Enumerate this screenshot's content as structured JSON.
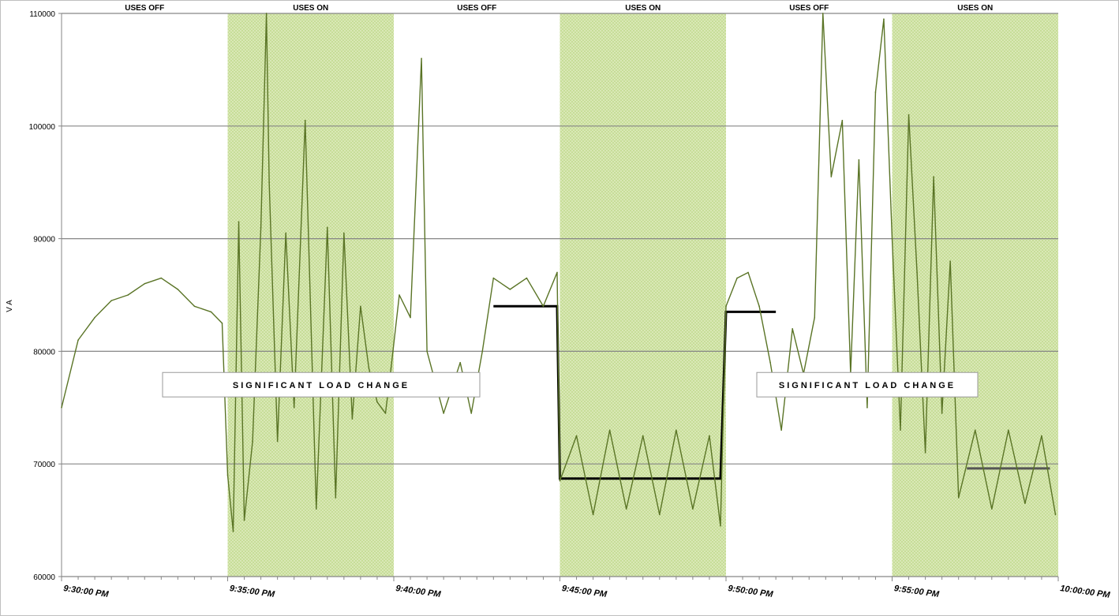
{
  "chart_data": {
    "type": "line",
    "ylabel": "V A",
    "xlabel": "",
    "ylim": [
      60000,
      110000
    ],
    "yticks": [
      60000,
      70000,
      80000,
      90000,
      100000,
      110000
    ],
    "ytick_labels": [
      "60000",
      "70000",
      "80000",
      "90000",
      "100000",
      "110000"
    ],
    "xlim_minutes": [
      0,
      30
    ],
    "xticks": [
      0,
      5,
      10,
      15,
      20,
      25,
      30
    ],
    "xtick_labels": [
      "9:30:00 PM",
      "9:35:00 PM",
      "9:40:00 PM",
      "9:45:00 PM",
      "9:50:00 PM",
      "9:55:00 PM",
      "10:00:00 PM"
    ],
    "grid": "horizontal",
    "bands": [
      {
        "label": "USES OFF",
        "start": "9:30:00 PM",
        "end": "9:35:00 PM",
        "shaded": false
      },
      {
        "label": "USES ON",
        "start": "9:35:00 PM",
        "end": "9:40:00 PM",
        "shaded": true
      },
      {
        "label": "USES OFF",
        "start": "9:40:00 PM",
        "end": "9:45:00 PM",
        "shaded": false
      },
      {
        "label": "USES ON",
        "start": "9:45:00 PM",
        "end": "9:50:00 PM",
        "shaded": true
      },
      {
        "label": "USES OFF",
        "start": "9:50:00 PM",
        "end": "9:55:00 PM",
        "shaded": false
      },
      {
        "label": "USES ON",
        "start": "9:55:00 PM",
        "end": "10:00:00 PM",
        "shaded": true
      }
    ],
    "annotations": [
      {
        "text": "SIGNIFICANT LOAD CHANGE",
        "near": "9:39:00 PM",
        "y": 77000
      },
      {
        "text": "SIGNIFICANT LOAD CHANGE",
        "near": "9:55:00 PM",
        "y": 77000
      }
    ],
    "level_lines": [
      {
        "points": [
          [
            "9:43:00 PM",
            84000
          ],
          [
            "9:44:55 PM",
            84000
          ],
          [
            "9:45:00 PM",
            68700
          ],
          [
            "9:49:50 PM",
            68700
          ],
          [
            "9:50:00 PM",
            83500
          ],
          [
            "9:51:30 PM",
            83500
          ]
        ],
        "color": "#000000"
      },
      {
        "points": [
          [
            "9:57:15 PM",
            69600
          ],
          [
            "9:59:45 PM",
            69600
          ]
        ],
        "color": "#555555"
      }
    ],
    "series": [
      {
        "color": "#5a7426",
        "x": [
          "9:30:00 PM",
          "9:30:30 PM",
          "9:31:00 PM",
          "9:31:30 PM",
          "9:32:00 PM",
          "9:32:30 PM",
          "9:33:00 PM",
          "9:33:30 PM",
          "9:34:00 PM",
          "9:34:30 PM",
          "9:34:50 PM",
          "9:35:00 PM",
          "9:35:10 PM",
          "9:35:20 PM",
          "9:35:30 PM",
          "9:35:45 PM",
          "9:36:00 PM",
          "9:36:10 PM",
          "9:36:15 PM",
          "9:36:30 PM",
          "9:36:45 PM",
          "9:37:00 PM",
          "9:37:20 PM",
          "9:37:40 PM",
          "9:38:00 PM",
          "9:38:15 PM",
          "9:38:30 PM",
          "9:38:45 PM",
          "9:39:00 PM",
          "9:39:15 PM",
          "9:39:30 PM",
          "9:39:45 PM",
          "9:39:55 PM",
          "9:40:10 PM",
          "9:40:30 PM",
          "9:40:50 PM",
          "9:41:00 PM",
          "9:41:30 PM",
          "9:42:00 PM",
          "9:42:20 PM",
          "9:42:40 PM",
          "9:43:00 PM",
          "9:43:30 PM",
          "9:44:00 PM",
          "9:44:30 PM",
          "9:44:55 PM",
          "9:45:00 PM",
          "9:45:30 PM",
          "9:46:00 PM",
          "9:46:30 PM",
          "9:47:00 PM",
          "9:47:30 PM",
          "9:48:00 PM",
          "9:48:30 PM",
          "9:49:00 PM",
          "9:49:30 PM",
          "9:49:50 PM",
          "9:50:00 PM",
          "9:50:20 PM",
          "9:50:40 PM",
          "9:51:00 PM",
          "9:51:20 PM",
          "9:51:40 PM",
          "9:52:00 PM",
          "9:52:20 PM",
          "9:52:40 PM",
          "9:52:55 PM",
          "9:53:10 PM",
          "9:53:30 PM",
          "9:53:45 PM",
          "9:54:00 PM",
          "9:54:15 PM",
          "9:54:30 PM",
          "9:54:45 PM",
          "9:55:00 PM",
          "9:55:15 PM",
          "9:55:30 PM",
          "9:55:45 PM",
          "9:56:00 PM",
          "9:56:15 PM",
          "9:56:30 PM",
          "9:56:45 PM",
          "9:57:00 PM",
          "9:57:30 PM",
          "9:58:00 PM",
          "9:58:30 PM",
          "9:59:00 PM",
          "9:59:30 PM",
          "9:59:55 PM"
        ],
        "values": [
          75000,
          81000,
          83000,
          84500,
          85000,
          86000,
          86500,
          85500,
          84000,
          83500,
          82500,
          69000,
          64000,
          91500,
          65000,
          72000,
          91000,
          110000,
          95000,
          72000,
          90500,
          75000,
          100500,
          66000,
          91000,
          67000,
          90500,
          74000,
          84000,
          78500,
          75500,
          74500,
          78500,
          85000,
          83000,
          106000,
          80000,
          74500,
          79000,
          74500,
          80000,
          86500,
          85500,
          86500,
          84000,
          87000,
          68500,
          72500,
          65500,
          73000,
          66000,
          72500,
          65500,
          73000,
          66000,
          72500,
          64500,
          84000,
          86500,
          87000,
          84000,
          79000,
          73000,
          82000,
          78000,
          83000,
          110000,
          95500,
          100500,
          78000,
          97000,
          75000,
          103000,
          109500,
          90000,
          73000,
          101000,
          87000,
          71000,
          95500,
          74500,
          88000,
          67000,
          73000,
          66000,
          73000,
          66500,
          72500,
          65500
        ]
      }
    ]
  }
}
